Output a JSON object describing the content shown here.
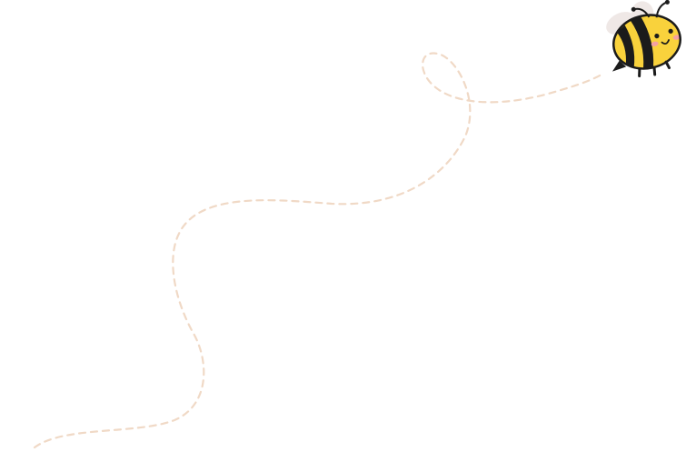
{
  "illustration": {
    "subject": "bee",
    "path_style": "dashed",
    "colors": {
      "background": "#ffffff",
      "flight_path": "#f0d9c6",
      "bee_body": "#f9d23c",
      "bee_stripes": "#1b1b1b",
      "bee_wings": "#efe8e6",
      "bee_cheeks": "#f4a1a1"
    }
  }
}
